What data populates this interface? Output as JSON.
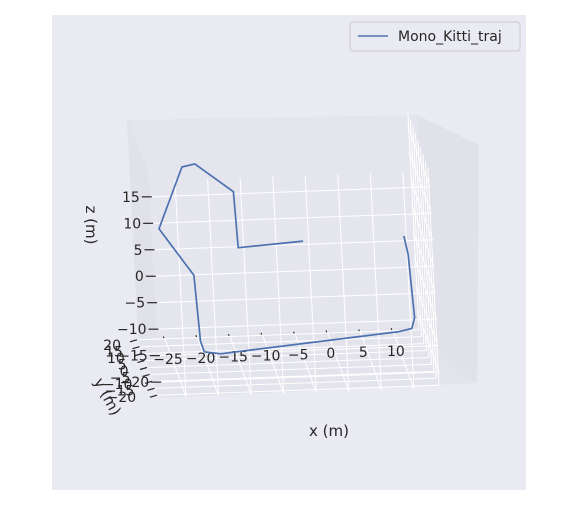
{
  "chart_data": {
    "type": "line",
    "projection": "3d",
    "xlabel": "x (m)",
    "ylabel": "y (m)",
    "zlabel": "z (m)",
    "x_ticks": [
      "−25",
      "−20",
      "−15",
      "−10",
      "−5",
      "0",
      "5",
      "10"
    ],
    "y_ticks": [
      "−20",
      "−15",
      "−10",
      "−5",
      "0",
      "5",
      "10",
      "15",
      "20"
    ],
    "z_ticks": [
      "15",
      "10",
      "5",
      "0",
      "−5",
      "−10",
      "−15",
      "−20"
    ],
    "xlim": [
      -29,
      14
    ],
    "ylim": [
      -22,
      22
    ],
    "zlim": [
      -23,
      18
    ],
    "grid": true,
    "legend_position": "upper right",
    "colors": {
      "background": "#eaeaf2",
      "line": "#4c72b0",
      "grid": "#ffffff"
    },
    "series": [
      {
        "name": "Mono_Kitti_traj",
        "points": [
          [
            -4,
            -6,
            -1.8
          ],
          [
            -14,
            -6,
            -2.6
          ],
          [
            -14.3,
            -6,
            8
          ],
          [
            -20,
            -6,
            13.5
          ],
          [
            -22,
            -6,
            13
          ],
          [
            -26,
            -6,
            1.5
          ],
          [
            -23.5,
            -6,
            -3
          ],
          [
            -21,
            -6,
            -7.5
          ],
          [
            -20.5,
            -6,
            -20
          ],
          [
            -20,
            -6,
            -22
          ],
          [
            -17.5,
            -6,
            -22.5
          ],
          [
            10,
            -6,
            -19.5
          ],
          [
            12,
            -6,
            -19
          ],
          [
            12.5,
            -6,
            -17
          ],
          [
            12,
            -6,
            -5
          ],
          [
            11.5,
            -6,
            -1.5
          ]
        ]
      }
    ]
  }
}
